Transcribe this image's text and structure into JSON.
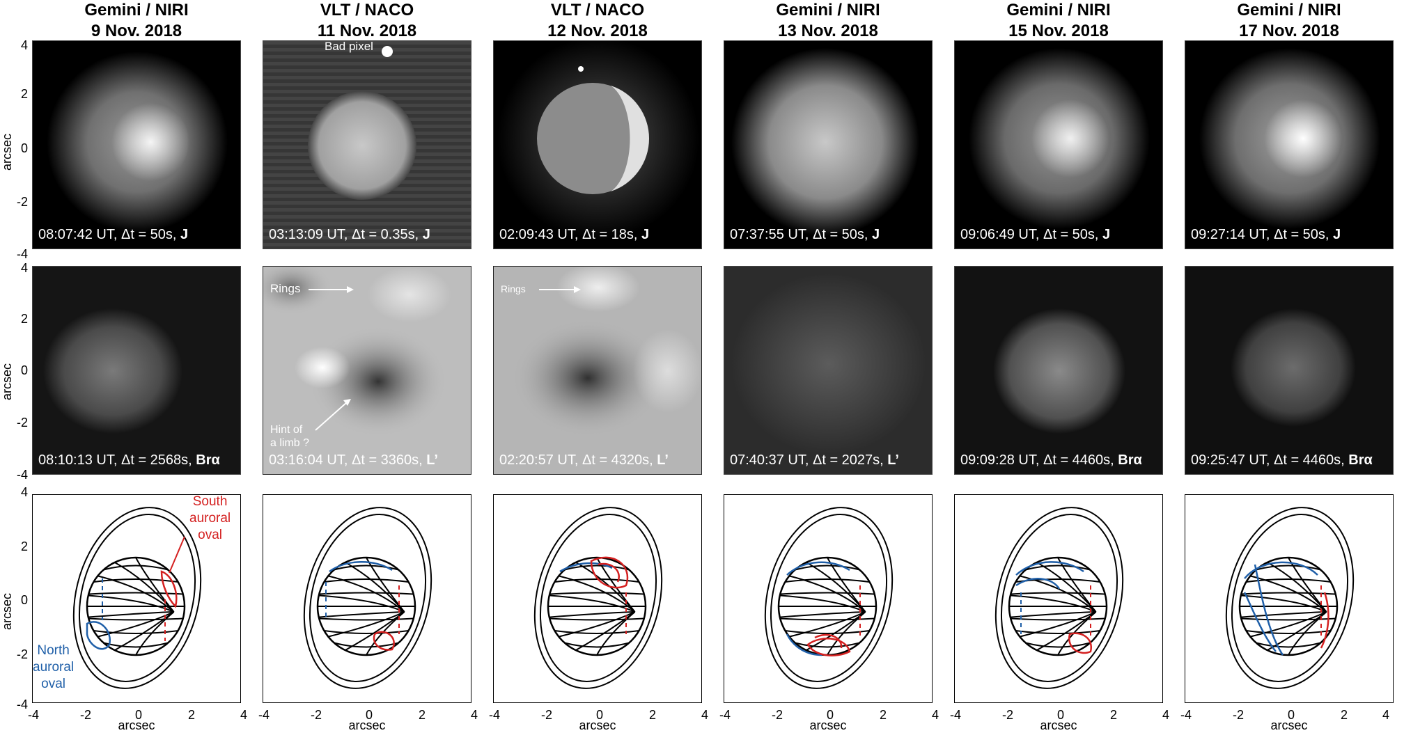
{
  "columns": [
    {
      "title_instrument": "Gemini / NIRI",
      "title_date": "9 Nov. 2018",
      "top_caption": {
        "time": "08:07:42 UT, Δt = 50s,",
        "band": "J"
      },
      "mid_caption": {
        "time": "08:10:13 UT, Δt = 2568s,",
        "band": "Brα"
      }
    },
    {
      "title_instrument": "VLT / NACO",
      "title_date": "11 Nov. 2018",
      "top_caption": {
        "time": "03:13:09 UT, Δt = 0.35s,",
        "band": "J"
      },
      "mid_caption": {
        "time": "03:16:04 UT, Δt = 3360s,",
        "band": "L’"
      }
    },
    {
      "title_instrument": "VLT / NACO",
      "title_date": "12 Nov. 2018",
      "top_caption": {
        "time": "02:09:43 UT, Δt = 18s,",
        "band": "J"
      },
      "mid_caption": {
        "time": "02:20:57 UT, Δt = 4320s,",
        "band": "L’"
      }
    },
    {
      "title_instrument": "Gemini / NIRI",
      "title_date": "13 Nov. 2018",
      "top_caption": {
        "time": "07:37:55 UT, Δt = 50s,",
        "band": "J"
      },
      "mid_caption": {
        "time": "07:40:37 UT, Δt = 2027s,",
        "band": "L’"
      }
    },
    {
      "title_instrument": "Gemini / NIRI",
      "title_date": "15 Nov. 2018",
      "top_caption": {
        "time": "09:06:49 UT, Δt = 50s,",
        "band": "J"
      },
      "mid_caption": {
        "time": "09:09:28 UT, Δt = 4460s,",
        "band": "Brα"
      }
    },
    {
      "title_instrument": "Gemini / NIRI",
      "title_date": "17 Nov. 2018",
      "top_caption": {
        "time": "09:27:14 UT, Δt = 50s,",
        "band": "J"
      },
      "mid_caption": {
        "time": "09:25:47 UT, Δt = 4460s,",
        "band": "Brα"
      }
    }
  ],
  "axes": {
    "ylabel": "arcsec",
    "xlabel": "arcsec",
    "yticks": [
      "4",
      "2",
      "0",
      "-2",
      "-4"
    ],
    "xticks": [
      "-4",
      "-2",
      "0",
      "2",
      "4"
    ]
  },
  "annotations": {
    "bad_pixel": "Bad pixel",
    "rings_1": "Rings",
    "rings_2": "Rings",
    "hint_limb_1": "Hint of",
    "hint_limb_2": "a limb ?",
    "south_1": "South",
    "south_2": "auroral",
    "south_3": "oval",
    "north_1": "North",
    "north_2": "auroral",
    "north_3": "oval"
  },
  "colors": {
    "north_oval": "#1f5fa8",
    "south_oval": "#d42020",
    "grid": "#000000"
  }
}
